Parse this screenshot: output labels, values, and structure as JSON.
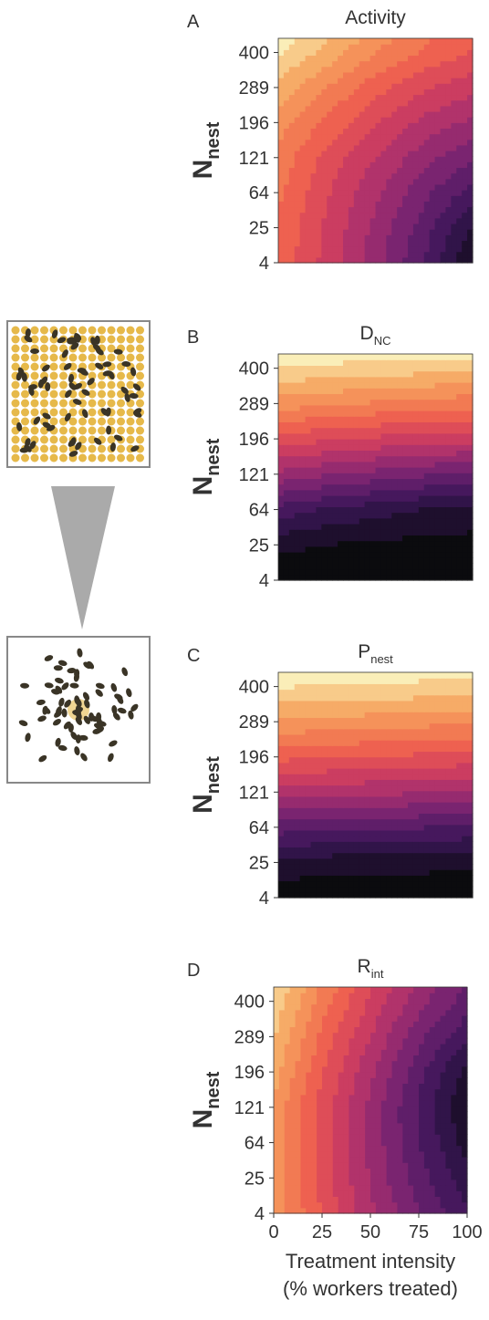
{
  "chart_data": [
    {
      "type": "contour",
      "panel": "A",
      "title": {
        "main": "Activity"
      },
      "ylabel": {
        "main": "N",
        "sub": "nest"
      },
      "xlim": [
        0,
        100
      ],
      "ylim": [
        4,
        450
      ],
      "yscale": "sqrt",
      "yticks": [
        4,
        25,
        64,
        121,
        196,
        289,
        400
      ],
      "zx": [
        0,
        25,
        50,
        75,
        100
      ],
      "zy": [
        4,
        25,
        64,
        121,
        196,
        289,
        400,
        450
      ],
      "z": [
        [
          0.67,
          0.54,
          0.4,
          0.25,
          0.05
        ],
        [
          0.68,
          0.55,
          0.42,
          0.28,
          0.12
        ],
        [
          0.7,
          0.57,
          0.45,
          0.33,
          0.22
        ],
        [
          0.73,
          0.6,
          0.5,
          0.4,
          0.32
        ],
        [
          0.78,
          0.67,
          0.57,
          0.48,
          0.42
        ],
        [
          0.85,
          0.75,
          0.65,
          0.57,
          0.52
        ],
        [
          0.95,
          0.85,
          0.75,
          0.68,
          0.62
        ],
        [
          0.98,
          0.88,
          0.78,
          0.7,
          0.65
        ]
      ],
      "zlim": [
        0,
        1
      ],
      "levels": 16
    },
    {
      "type": "contour",
      "panel": "B",
      "title": {
        "main": "D",
        "sub": "NC"
      },
      "ylabel": {
        "main": "N",
        "sub": "nest"
      },
      "xlim": [
        0,
        100
      ],
      "ylim": [
        4,
        450
      ],
      "yscale": "sqrt",
      "yticks": [
        4,
        25,
        64,
        121,
        196,
        289,
        400
      ],
      "zx": [
        0,
        25,
        50,
        75,
        100
      ],
      "zy": [
        4,
        25,
        64,
        121,
        196,
        289,
        400,
        450
      ],
      "z": [
        [
          0.02,
          0.02,
          0.02,
          0.02,
          0.02
        ],
        [
          0.08,
          0.06,
          0.05,
          0.04,
          0.04
        ],
        [
          0.22,
          0.18,
          0.15,
          0.12,
          0.1
        ],
        [
          0.42,
          0.38,
          0.35,
          0.32,
          0.3
        ],
        [
          0.6,
          0.57,
          0.55,
          0.53,
          0.52
        ],
        [
          0.78,
          0.76,
          0.74,
          0.72,
          0.71
        ],
        [
          0.93,
          0.92,
          0.91,
          0.9,
          0.89
        ],
        [
          0.98,
          0.97,
          0.96,
          0.96,
          0.95
        ]
      ],
      "zlim": [
        0,
        1
      ],
      "levels": 16
    },
    {
      "type": "contour",
      "panel": "C",
      "title": {
        "main": "P",
        "sub": "nest"
      },
      "ylabel": {
        "main": "N",
        "sub": "nest"
      },
      "xlim": [
        0,
        100
      ],
      "ylim": [
        4,
        450
      ],
      "yscale": "sqrt",
      "yticks": [
        4,
        25,
        64,
        121,
        196,
        289,
        400
      ],
      "zx": [
        0,
        25,
        50,
        75,
        100
      ],
      "zy": [
        4,
        25,
        64,
        121,
        196,
        289,
        400,
        450
      ],
      "z": [
        [
          0.02,
          0.02,
          0.02,
          0.02,
          0.02
        ],
        [
          0.1,
          0.09,
          0.08,
          0.08,
          0.07
        ],
        [
          0.28,
          0.27,
          0.26,
          0.25,
          0.24
        ],
        [
          0.47,
          0.46,
          0.45,
          0.44,
          0.43
        ],
        [
          0.64,
          0.63,
          0.62,
          0.61,
          0.6
        ],
        [
          0.8,
          0.79,
          0.78,
          0.77,
          0.76
        ],
        [
          0.94,
          0.93,
          0.93,
          0.92,
          0.91
        ],
        [
          0.98,
          0.97,
          0.97,
          0.96,
          0.96
        ]
      ],
      "zlim": [
        0,
        1
      ],
      "levels": 16
    },
    {
      "type": "contour",
      "panel": "D",
      "title": {
        "main": "R",
        "sub": "int"
      },
      "ylabel": {
        "main": "N",
        "sub": "nest"
      },
      "xlabel": [
        "Treatment intensity",
        "(% workers treated)"
      ],
      "xlim": [
        0,
        100
      ],
      "xticks": [
        0,
        25,
        50,
        75,
        100
      ],
      "ylim": [
        4,
        450
      ],
      "yscale": "sqrt",
      "yticks": [
        4,
        25,
        64,
        121,
        196,
        289,
        400
      ],
      "zx": [
        0,
        25,
        50,
        75,
        100
      ],
      "zy": [
        4,
        25,
        64,
        121,
        196,
        289,
        400,
        450
      ],
      "z": [
        [
          0.8,
          0.62,
          0.45,
          0.32,
          0.2
        ],
        [
          0.78,
          0.6,
          0.43,
          0.28,
          0.15
        ],
        [
          0.78,
          0.6,
          0.42,
          0.25,
          0.1
        ],
        [
          0.8,
          0.6,
          0.42,
          0.24,
          0.06
        ],
        [
          0.84,
          0.63,
          0.45,
          0.27,
          0.1
        ],
        [
          0.88,
          0.67,
          0.5,
          0.33,
          0.2
        ],
        [
          0.92,
          0.72,
          0.55,
          0.4,
          0.28
        ],
        [
          0.94,
          0.74,
          0.57,
          0.42,
          0.3
        ]
      ],
      "zlim": [
        0,
        1
      ],
      "levels": 16
    }
  ],
  "colormap": [
    "#0b0b0e",
    "#2a1242",
    "#4d1a64",
    "#7a2470",
    "#a8306e",
    "#d4405e",
    "#ee6150",
    "#f48a55",
    "#f7b36c",
    "#faeeb8"
  ]
}
